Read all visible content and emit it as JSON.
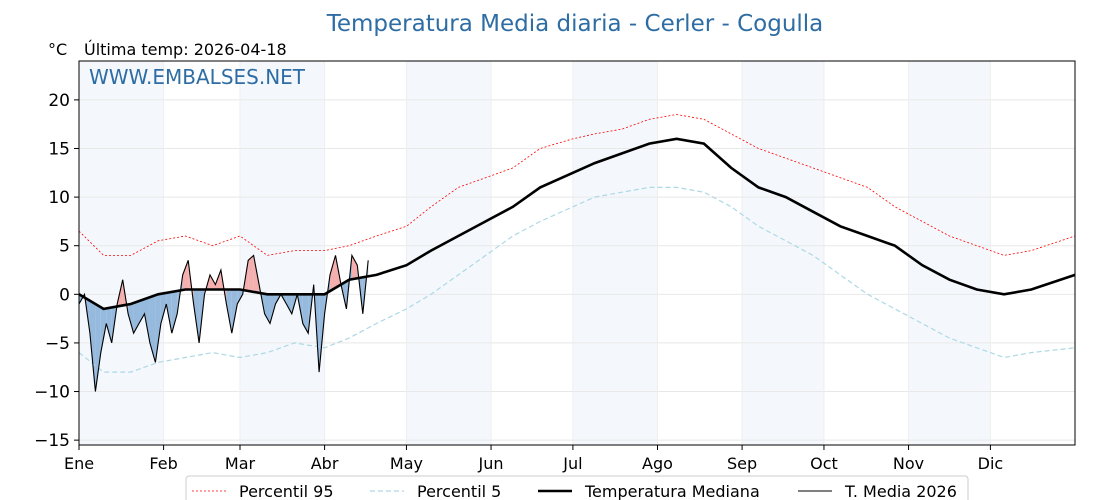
{
  "chart_data": {
    "type": "line",
    "title": "Temperatura Media diaria - Cerler - Cogulla",
    "unit_label": "°C",
    "last_temp_label": "Última temp: 2026-04-18",
    "watermark": "WWW.EMBALSES.NET",
    "xlabel": "",
    "ylabel": "",
    "x_domain": [
      1,
      366
    ],
    "ylim": [
      -15.5,
      24
    ],
    "yticks": [
      -15,
      -10,
      -5,
      0,
      5,
      10,
      15,
      20
    ],
    "ytick_labels": [
      "−15",
      "−10",
      "−5",
      "0",
      "5",
      "10",
      "15",
      "20"
    ],
    "months": [
      {
        "label": "Ene",
        "day": 1
      },
      {
        "label": "Feb",
        "day": 32
      },
      {
        "label": "Mar",
        "day": 60
      },
      {
        "label": "Abr",
        "day": 91
      },
      {
        "label": "May",
        "day": 121
      },
      {
        "label": "Jun",
        "day": 152
      },
      {
        "label": "Jul",
        "day": 182
      },
      {
        "label": "Ago",
        "day": 213
      },
      {
        "label": "Sep",
        "day": 244
      },
      {
        "label": "Oct",
        "day": 274
      },
      {
        "label": "Nov",
        "day": 305
      },
      {
        "label": "Dic",
        "day": 335
      }
    ],
    "shaded_months": [
      [
        1,
        32
      ],
      [
        60,
        91
      ],
      [
        121,
        152
      ],
      [
        182,
        213
      ],
      [
        244,
        274
      ],
      [
        305,
        335
      ]
    ],
    "grid": true,
    "legend_position": "bottom-center",
    "series": [
      {
        "name": "Percentil 95",
        "color": "#ff0000",
        "style": "dotted",
        "key": "p95",
        "points": [
          [
            1,
            6.5
          ],
          [
            10,
            4
          ],
          [
            20,
            4
          ],
          [
            30,
            5.5
          ],
          [
            40,
            6
          ],
          [
            50,
            5
          ],
          [
            60,
            6
          ],
          [
            70,
            4
          ],
          [
            80,
            4.5
          ],
          [
            91,
            4.5
          ],
          [
            100,
            5
          ],
          [
            110,
            6
          ],
          [
            121,
            7
          ],
          [
            130,
            9
          ],
          [
            140,
            11
          ],
          [
            150,
            12
          ],
          [
            160,
            13
          ],
          [
            170,
            15
          ],
          [
            182,
            16
          ],
          [
            190,
            16.5
          ],
          [
            200,
            17
          ],
          [
            210,
            18
          ],
          [
            220,
            18.5
          ],
          [
            230,
            18
          ],
          [
            240,
            16.5
          ],
          [
            250,
            15
          ],
          [
            260,
            14
          ],
          [
            270,
            13
          ],
          [
            280,
            12
          ],
          [
            290,
            11
          ],
          [
            300,
            9
          ],
          [
            310,
            7.5
          ],
          [
            320,
            6
          ],
          [
            330,
            5
          ],
          [
            340,
            4
          ],
          [
            350,
            4.5
          ],
          [
            366,
            6
          ]
        ]
      },
      {
        "name": "Percentil 5",
        "color": "#add8e6",
        "style": "dashed",
        "key": "p5",
        "points": [
          [
            1,
            -6
          ],
          [
            10,
            -8
          ],
          [
            20,
            -8
          ],
          [
            30,
            -7
          ],
          [
            40,
            -6.5
          ],
          [
            50,
            -6
          ],
          [
            60,
            -6.5
          ],
          [
            70,
            -6
          ],
          [
            80,
            -5
          ],
          [
            91,
            -5.5
          ],
          [
            100,
            -4.5
          ],
          [
            110,
            -3
          ],
          [
            121,
            -1.5
          ],
          [
            130,
            0
          ],
          [
            140,
            2
          ],
          [
            150,
            4
          ],
          [
            160,
            6
          ],
          [
            170,
            7.5
          ],
          [
            182,
            9
          ],
          [
            190,
            10
          ],
          [
            200,
            10.5
          ],
          [
            210,
            11
          ],
          [
            220,
            11
          ],
          [
            230,
            10.5
          ],
          [
            240,
            9
          ],
          [
            250,
            7
          ],
          [
            260,
            5.5
          ],
          [
            270,
            4
          ],
          [
            280,
            2
          ],
          [
            290,
            0
          ],
          [
            300,
            -1.5
          ],
          [
            310,
            -3
          ],
          [
            320,
            -4.5
          ],
          [
            330,
            -5.5
          ],
          [
            340,
            -6.5
          ],
          [
            350,
            -6
          ],
          [
            366,
            -5.5
          ]
        ]
      },
      {
        "name": "Temperatura Mediana",
        "color": "#000000",
        "style": "solid-thick",
        "key": "median",
        "points": [
          [
            1,
            0
          ],
          [
            10,
            -1.5
          ],
          [
            20,
            -1
          ],
          [
            30,
            0
          ],
          [
            40,
            0.5
          ],
          [
            50,
            0.5
          ],
          [
            60,
            0.5
          ],
          [
            70,
            0
          ],
          [
            80,
            0
          ],
          [
            91,
            0
          ],
          [
            100,
            1.5
          ],
          [
            110,
            2
          ],
          [
            121,
            3
          ],
          [
            130,
            4.5
          ],
          [
            140,
            6
          ],
          [
            150,
            7.5
          ],
          [
            160,
            9
          ],
          [
            170,
            11
          ],
          [
            182,
            12.5
          ],
          [
            190,
            13.5
          ],
          [
            200,
            14.5
          ],
          [
            210,
            15.5
          ],
          [
            220,
            16
          ],
          [
            230,
            15.5
          ],
          [
            240,
            13
          ],
          [
            250,
            11
          ],
          [
            260,
            10
          ],
          [
            270,
            8.5
          ],
          [
            280,
            7
          ],
          [
            290,
            6
          ],
          [
            300,
            5
          ],
          [
            310,
            3
          ],
          [
            320,
            1.5
          ],
          [
            330,
            0.5
          ],
          [
            340,
            0
          ],
          [
            350,
            0.5
          ],
          [
            366,
            2
          ]
        ]
      },
      {
        "name": "T. Media 2026",
        "color": "#000000",
        "style": "solid-thin",
        "key": "y2026",
        "points": [
          [
            1,
            -1
          ],
          [
            3,
            0
          ],
          [
            5,
            -4
          ],
          [
            7,
            -10
          ],
          [
            9,
            -6
          ],
          [
            11,
            -3
          ],
          [
            13,
            -5
          ],
          [
            15,
            -1
          ],
          [
            17,
            1.5
          ],
          [
            19,
            -2
          ],
          [
            21,
            -4
          ],
          [
            23,
            -3
          ],
          [
            25,
            -2
          ],
          [
            27,
            -5
          ],
          [
            29,
            -7
          ],
          [
            31,
            -3
          ],
          [
            33,
            -1
          ],
          [
            35,
            -4
          ],
          [
            37,
            -2
          ],
          [
            39,
            2
          ],
          [
            41,
            3.5
          ],
          [
            43,
            -1
          ],
          [
            45,
            -5
          ],
          [
            47,
            0
          ],
          [
            49,
            2
          ],
          [
            51,
            1
          ],
          [
            53,
            2.5
          ],
          [
            55,
            -1
          ],
          [
            57,
            -4
          ],
          [
            59,
            -1
          ],
          [
            61,
            0
          ],
          [
            63,
            3.5
          ],
          [
            65,
            4
          ],
          [
            67,
            1
          ],
          [
            69,
            -2
          ],
          [
            71,
            -3
          ],
          [
            73,
            -1
          ],
          [
            75,
            0
          ],
          [
            77,
            -1
          ],
          [
            79,
            -2
          ],
          [
            81,
            0
          ],
          [
            83,
            -3
          ],
          [
            85,
            -4
          ],
          [
            87,
            1
          ],
          [
            89,
            -8
          ],
          [
            91,
            -2
          ],
          [
            93,
            2
          ],
          [
            95,
            4
          ],
          [
            97,
            1
          ],
          [
            99,
            -1.5
          ],
          [
            101,
            4
          ],
          [
            103,
            3
          ],
          [
            105,
            -2
          ],
          [
            107,
            3.5
          ]
        ]
      }
    ]
  }
}
